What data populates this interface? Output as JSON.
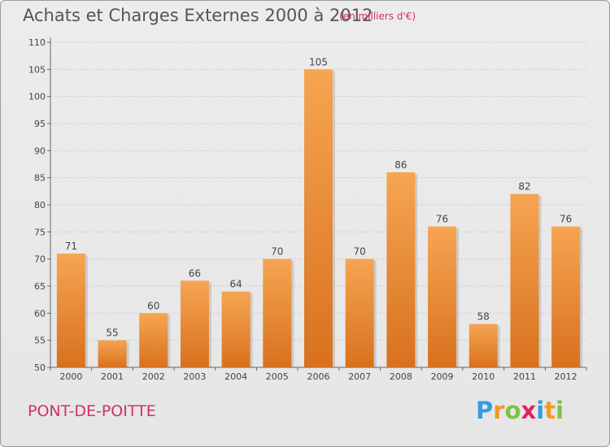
{
  "title": "Achats et Charges Externes 2000 à 2012",
  "subtitle": "(en milliers d'€)",
  "place": "PONT-DE-POITTE",
  "brand": {
    "letters": [
      "P",
      "r",
      "o",
      "x",
      "i",
      "t",
      "i"
    ],
    "colors": [
      "#2f9fe0",
      "#f39a24",
      "#7cc242",
      "#e2245d",
      "#2f9fe0",
      "#f39a24",
      "#7cc242"
    ]
  },
  "colors": {
    "bar_top": "#f6a552",
    "bar_bottom": "#d8711e",
    "axis_text": "#444444",
    "grid": "#cccccc"
  },
  "chart_data": {
    "type": "bar",
    "categories": [
      "2000",
      "2001",
      "2002",
      "2003",
      "2004",
      "2005",
      "2006",
      "2007",
      "2008",
      "2009",
      "2010",
      "2011",
      "2012"
    ],
    "values": [
      71,
      55,
      60,
      66,
      64,
      70,
      105,
      70,
      86,
      76,
      58,
      82,
      76
    ],
    "data_labels": [
      "71",
      "55",
      "60",
      "66",
      "64",
      "70",
      "105",
      "70",
      "86",
      "76",
      "58",
      "82",
      "76"
    ],
    "ylim": [
      50,
      110
    ],
    "yticks": [
      50,
      55,
      60,
      65,
      70,
      75,
      80,
      85,
      90,
      95,
      100,
      105,
      110
    ],
    "grid": true,
    "xlabel": "",
    "ylabel": ""
  }
}
